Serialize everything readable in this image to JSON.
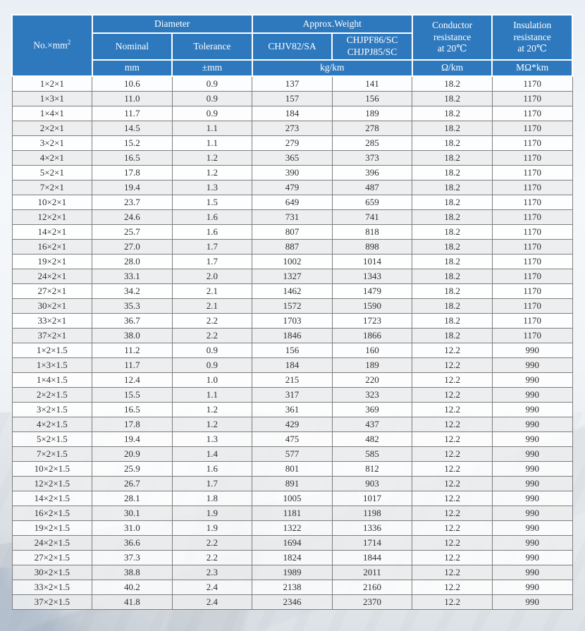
{
  "colors": {
    "header_blue": "#2e79bd",
    "header_text": "#ffffff",
    "row_alt_gray": "#ececed",
    "border_gray": "#7d7d7d",
    "cell_text": "#2f2f2f"
  },
  "table": {
    "header": {
      "col1": {
        "text": "No.×mm",
        "sup": "2"
      },
      "groups": [
        {
          "label": "Diameter"
        },
        {
          "label": "Approx.Weight"
        }
      ],
      "subs": [
        "Nominal",
        "Tolerance",
        "CHJV82/SA",
        "CHJPF86/SC\nCHJPJ85/SC"
      ],
      "conductor": "Conductor\nresistance\nat 20℃",
      "insulation": "Insulation\nresistance\nat 20℃",
      "units": {
        "nominal": "mm",
        "tolerance": "±mm",
        "weight": "kg/km",
        "conductor": "Ω/km",
        "insulation": "MΩ*km"
      }
    },
    "rows": [
      [
        "1×2×1",
        "10.6",
        "0.9",
        "137",
        "141",
        "18.2",
        "1170"
      ],
      [
        "1×3×1",
        "11.0",
        "0.9",
        "157",
        "156",
        "18.2",
        "1170"
      ],
      [
        "1×4×1",
        "11.7",
        "0.9",
        "184",
        "189",
        "18.2",
        "1170"
      ],
      [
        "2×2×1",
        "14.5",
        "1.1",
        "273",
        "278",
        "18.2",
        "1170"
      ],
      [
        "3×2×1",
        "15.2",
        "1.1",
        "279",
        "285",
        "18.2",
        "1170"
      ],
      [
        "4×2×1",
        "16.5",
        "1.2",
        "365",
        "373",
        "18.2",
        "1170"
      ],
      [
        "5×2×1",
        "17.8",
        "1.2",
        "390",
        "396",
        "18.2",
        "1170"
      ],
      [
        "7×2×1",
        "19.4",
        "1.3",
        "479",
        "487",
        "18.2",
        "1170"
      ],
      [
        "10×2×1",
        "23.7",
        "1.5",
        "649",
        "659",
        "18.2",
        "1170"
      ],
      [
        "12×2×1",
        "24.6",
        "1.6",
        "731",
        "741",
        "18.2",
        "1170"
      ],
      [
        "14×2×1",
        "25.7",
        "1.6",
        "807",
        "818",
        "18.2",
        "1170"
      ],
      [
        "16×2×1",
        "27.0",
        "1.7",
        "887",
        "898",
        "18.2",
        "1170"
      ],
      [
        "19×2×1",
        "28.0",
        "1.7",
        "1002",
        "1014",
        "18.2",
        "1170"
      ],
      [
        "24×2×1",
        "33.1",
        "2.0",
        "1327",
        "1343",
        "18.2",
        "1170"
      ],
      [
        "27×2×1",
        "34.2",
        "2.1",
        "1462",
        "1479",
        "18.2",
        "1170"
      ],
      [
        "30×2×1",
        "35.3",
        "2.1",
        "1572",
        "1590",
        "18.2",
        "1170"
      ],
      [
        "33×2×1",
        "36.7",
        "2.2",
        "1703",
        "1723",
        "18.2",
        "1170"
      ],
      [
        "37×2×1",
        "38.0",
        "2.2",
        "1846",
        "1866",
        "18.2",
        "1170"
      ],
      [
        "1×2×1.5",
        "11.2",
        "0.9",
        "156",
        "160",
        "12.2",
        "990"
      ],
      [
        "1×3×1.5",
        "11.7",
        "0.9",
        "184",
        "189",
        "12.2",
        "990"
      ],
      [
        "1×4×1.5",
        "12.4",
        "1.0",
        "215",
        "220",
        "12.2",
        "990"
      ],
      [
        "2×2×1.5",
        "15.5",
        "1.1",
        "317",
        "323",
        "12.2",
        "990"
      ],
      [
        "3×2×1.5",
        "16.5",
        "1.2",
        "361",
        "369",
        "12.2",
        "990"
      ],
      [
        "4×2×1.5",
        "17.8",
        "1.2",
        "429",
        "437",
        "12.2",
        "990"
      ],
      [
        "5×2×1.5",
        "19.4",
        "1.3",
        "475",
        "482",
        "12.2",
        "990"
      ],
      [
        "7×2×1.5",
        "20.9",
        "1.4",
        "577",
        "585",
        "12.2",
        "990"
      ],
      [
        "10×2×1.5",
        "25.9",
        "1.6",
        "801",
        "812",
        "12.2",
        "990"
      ],
      [
        "12×2×1.5",
        "26.7",
        "1.7",
        "891",
        "903",
        "12.2",
        "990"
      ],
      [
        "14×2×1.5",
        "28.1",
        "1.8",
        "1005",
        "1017",
        "12.2",
        "990"
      ],
      [
        "16×2×1.5",
        "30.1",
        "1.9",
        "1181",
        "1198",
        "12.2",
        "990"
      ],
      [
        "19×2×1.5",
        "31.0",
        "1.9",
        "1322",
        "1336",
        "12.2",
        "990"
      ],
      [
        "24×2×1.5",
        "36.6",
        "2.2",
        "1694",
        "1714",
        "12.2",
        "990"
      ],
      [
        "27×2×1.5",
        "37.3",
        "2.2",
        "1824",
        "1844",
        "12.2",
        "990"
      ],
      [
        "30×2×1.5",
        "38.8",
        "2.3",
        "1989",
        "2011",
        "12.2",
        "990"
      ],
      [
        "33×2×1.5",
        "40.2",
        "2.4",
        "2138",
        "2160",
        "12.2",
        "990"
      ],
      [
        "37×2×1.5",
        "41.8",
        "2.4",
        "2346",
        "2370",
        "12.2",
        "990"
      ]
    ],
    "column_keys": [
      "spec",
      "nominal-diameter",
      "tolerance",
      "weight-chjv82-sa",
      "weight-chjpf86-chjpj85",
      "conductor-resistance",
      "insulation-resistance"
    ]
  }
}
